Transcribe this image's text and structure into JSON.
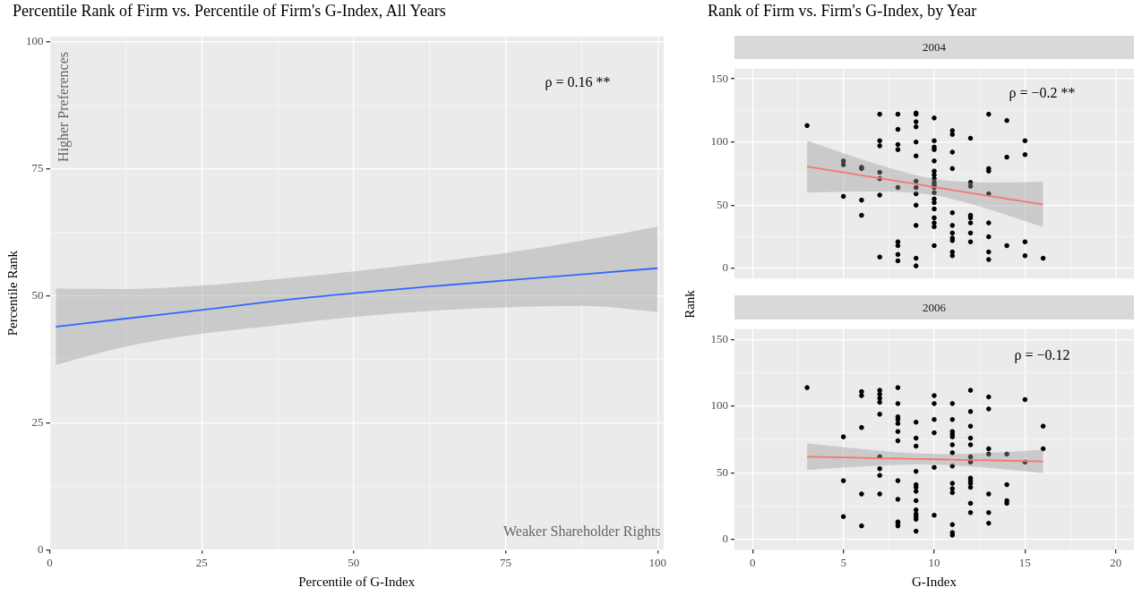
{
  "chart_data": [
    {
      "type": "line",
      "title": "Percentile Rank of Firm vs. Percentile of Firm's G-Index, All Years",
      "xlabel": "Percentile of G-Index",
      "ylabel": "Percentile Rank",
      "xlim": [
        0,
        101
      ],
      "ylim": [
        0,
        101
      ],
      "xticks": [
        0,
        {
          "value": 12.5,
          "label": null
        },
        25,
        {
          "value": 37.5,
          "label": null
        },
        50,
        {
          "value": 62.5,
          "label": null
        },
        75,
        {
          "value": 87.5,
          "label": null
        },
        100
      ],
      "yticks": [
        0,
        {
          "value": 12.5,
          "label": null
        },
        25,
        {
          "value": 37.5,
          "label": null
        },
        50,
        {
          "value": 62.5,
          "label": null
        },
        75,
        {
          "value": 87.5,
          "label": null
        },
        100
      ],
      "grid": true,
      "annotations": [
        "ρ = 0.16 **",
        "Higher Preferences",
        "Weaker Shareholder Rights"
      ],
      "series": [
        {
          "color": "#3366ff",
          "marker": "none",
          "x": [
            1,
            12.5,
            25,
            37.5,
            50,
            62.5,
            75,
            87.5,
            100
          ],
          "values": [
            43.9,
            45.5,
            47.2,
            49,
            50.5,
            51.8,
            53,
            54.2,
            55.4
          ],
          "lower": [
            36.4,
            40,
            42.5,
            44.2,
            45.8,
            47,
            47.7,
            48,
            46.8
          ],
          "upper": [
            51.4,
            51.3,
            52,
            53.3,
            54.8,
            56.5,
            58.4,
            60.8,
            63.6
          ]
        }
      ]
    },
    {
      "type": "scatter",
      "title": "Rank of Firm vs. Firm's G-Index, by Year",
      "subtitle": "2004",
      "ylabel": "Rank",
      "xlim": [
        -1,
        21
      ],
      "ylim": [
        -8,
        158
      ],
      "xticks": [
        0,
        {
          "value": 2.5,
          "label": null
        },
        5,
        {
          "value": 7.5,
          "label": null
        },
        10,
        {
          "value": 12.5,
          "label": null
        },
        15,
        {
          "value": 17.5,
          "label": null
        },
        20
      ],
      "yticks": [
        0,
        {
          "value": 25,
          "label": null
        },
        50,
        {
          "value": 75,
          "label": null
        },
        100,
        {
          "value": 125,
          "label": null
        },
        150
      ],
      "grid": true,
      "tick_labels": "y",
      "annotations": [
        "ρ = −0.2 **"
      ],
      "series": [
        {
          "color": "#000000",
          "marker": "circle",
          "x": [
            3,
            5,
            5,
            5,
            6,
            6,
            6,
            6,
            7,
            7,
            7,
            7,
            7,
            7,
            7,
            8,
            8,
            8,
            8,
            8,
            8,
            8,
            8,
            8,
            9,
            9,
            9,
            9,
            9,
            9,
            9,
            9,
            9,
            9,
            9,
            9,
            9,
            10,
            10,
            10,
            10,
            10,
            10,
            10,
            10,
            10,
            10,
            10,
            10,
            10,
            10,
            10,
            10,
            10,
            10,
            10,
            11,
            11,
            11,
            11,
            11,
            11,
            11,
            11,
            11,
            11,
            11,
            12,
            12,
            12,
            12,
            12,
            12,
            12,
            12,
            13,
            13,
            13,
            13,
            13,
            13,
            13,
            13,
            14,
            14,
            14,
            15,
            15,
            15,
            15,
            16
          ],
          "values": [
            113,
            85,
            82,
            57,
            80,
            79,
            54,
            42,
            122,
            101,
            97,
            76,
            71,
            58,
            9,
            122,
            110,
            98,
            94,
            64,
            21,
            18,
            11,
            6,
            123,
            122,
            116,
            112,
            100,
            89,
            69,
            64,
            59,
            50,
            34,
            8,
            2,
            119,
            101,
            96,
            94,
            85,
            77,
            74,
            71,
            68,
            66,
            64,
            60,
            55,
            52,
            47,
            40,
            36,
            33,
            18,
            109,
            106,
            92,
            79,
            44,
            34,
            28,
            24,
            22,
            13,
            10,
            103,
            68,
            65,
            42,
            40,
            36,
            28,
            21,
            122,
            79,
            77,
            59,
            36,
            25,
            13,
            7,
            117,
            88,
            18,
            101,
            90,
            21,
            10,
            8
          ]
        },
        {
          "type": "line",
          "color": "#f8766d",
          "marker": "none",
          "x": [
            3,
            5,
            7,
            9,
            10,
            11,
            13,
            16
          ],
          "values": [
            80.5,
            75.9,
            71.3,
            66.7,
            64.3,
            62,
            57.4,
            50.5
          ],
          "lower": [
            60,
            60.6,
            60.8,
            59.6,
            57.8,
            54.9,
            46.9,
            32.6
          ],
          "upper": [
            101,
            91.2,
            81.8,
            73.8,
            70.8,
            69.1,
            67.9,
            68.4
          ]
        }
      ]
    },
    {
      "type": "scatter",
      "subtitle": "2006",
      "xlabel": "G-Index",
      "xlim": [
        -1,
        21
      ],
      "ylim": [
        -8,
        158
      ],
      "xticks": [
        0,
        {
          "value": 2.5,
          "label": null
        },
        5,
        {
          "value": 7.5,
          "label": null
        },
        10,
        {
          "value": 12.5,
          "label": null
        },
        15,
        {
          "value": 17.5,
          "label": null
        },
        20
      ],
      "yticks": [
        0,
        {
          "value": 25,
          "label": null
        },
        50,
        {
          "value": 75,
          "label": null
        },
        100,
        {
          "value": 125,
          "label": null
        },
        150
      ],
      "grid": true,
      "annotations": [
        "ρ = −0.12"
      ],
      "series": [
        {
          "color": "#000000",
          "marker": "circle",
          "x": [
            3,
            5,
            5,
            5,
            6,
            6,
            6,
            6,
            6,
            7,
            7,
            7,
            7,
            7,
            7,
            7,
            7,
            7,
            8,
            8,
            8,
            8,
            8,
            8,
            8,
            8,
            8,
            8,
            8,
            8,
            9,
            9,
            9,
            9,
            9,
            9,
            9,
            9,
            9,
            9,
            9,
            9,
            9,
            10,
            10,
            10,
            10,
            10,
            10,
            11,
            11,
            11,
            11,
            11,
            11,
            11,
            11,
            11,
            11,
            11,
            11,
            11,
            11,
            12,
            12,
            12,
            12,
            12,
            12,
            12,
            12,
            12,
            12,
            12,
            12,
            12,
            12,
            13,
            13,
            13,
            13,
            13,
            13,
            13,
            14,
            14,
            14,
            14,
            15,
            15,
            16,
            16
          ],
          "values": [
            114,
            77,
            44,
            17,
            111,
            108,
            84,
            34,
            10,
            112,
            109,
            106,
            103,
            94,
            62,
            53,
            48,
            34,
            114,
            102,
            92,
            90,
            87,
            81,
            74,
            44,
            30,
            13,
            12,
            10,
            88,
            76,
            70,
            51,
            41,
            39,
            36,
            29,
            22,
            19,
            17,
            15,
            6,
            108,
            102,
            90,
            80,
            54,
            18,
            102,
            90,
            81,
            79,
            77,
            71,
            65,
            55,
            42,
            38,
            35,
            11,
            5,
            3,
            112,
            96,
            85,
            76,
            71,
            62,
            59,
            58,
            46,
            44,
            42,
            39,
            27,
            20,
            107,
            98,
            68,
            64,
            34,
            20,
            12,
            64,
            41,
            29,
            27,
            105,
            58,
            85,
            68
          ]
        },
        {
          "type": "line",
          "color": "#f8766d",
          "marker": "none",
          "x": [
            3,
            5,
            7,
            9,
            10,
            11,
            13,
            16
          ],
          "values": [
            62,
            61.5,
            60.9,
            60.4,
            60.1,
            59.8,
            59.3,
            58.5
          ],
          "lower": [
            52,
            53.8,
            55.3,
            56.2,
            56.1,
            55.6,
            53.7,
            49.7
          ],
          "upper": [
            72,
            69.2,
            66.5,
            64.6,
            64.1,
            64,
            64.9,
            67.3
          ]
        }
      ]
    }
  ]
}
